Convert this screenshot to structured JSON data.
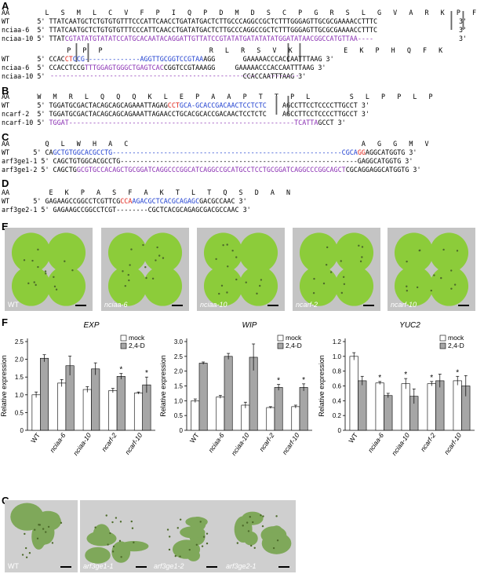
{
  "panels": {
    "A": "A",
    "B": "B",
    "C": "C",
    "D": "D",
    "E": "E",
    "F": "F",
    "G": "G"
  },
  "seqA": {
    "aa1": "AA         L   S   M   L   C   V   F   P   I   Q   P   D   M   D   S   C   P   G   R   S   L   G   V   A   R   K   P   F",
    "wt1": "WT       5' TTATCAATGCTCTGTGTGTTTCCCATTCAACCTGATATGACTCTTGCCCAGGCCGCTCTTTGGGAGTTGCGCGAAAACCTTTC",
    "n6_1": "nciaa-6  5' TTATCAATGCTCTGTGTGTTTCCCATTCAACCTGATATGACTCTTGCCCAGGCCGCTCTTTGGGAGTTGCGCGAAAACCTTTC",
    "n10_1a": "nciaa-10 5' TTAT",
    "n10_1b": "CGTATATGTATATCCATGCACAATACAGGATTGTTATCCGTATATGATATATATGGATATAACGGCCATGTTAA",
    "n10_1c": "----",
    "aa2": "     P   P   P                           R   L   R   S   V   K             E   K   P   H   Q   F   K",
    "wt2a": "WT       5' CCAC",
    "wt2b": "CT",
    "wt2c": "CCG",
    "wt2d": "--------------",
    "wt2e": "AGGTTGCGGTCCGTAA",
    "wt2f": "AGG",
    "wt2g": "       GAAAAACCCACCAATTTAAG 3'",
    "n6_2a": "nciaa-6  5' CCACCTCCG",
    "n6_2b": "TTTGGAGTGGGCTGAGTCAC",
    "n6_2c": "CGGTCCGTAAAGG     GAAAAACCCACCAATTTAAG 3'",
    "n10_2": "nciaa-10 5'                                                  CCACCAATTTAAG 3'",
    "n10_2d": "----------------------------------------------------   --------"
  },
  "seqB": {
    "aa": "AA       W   M   R   L   Q   Q   Q   K   L   E   P   A   A   P   T   T   P   L          S   L   P   P   L   P",
    "wt_a": "WT       5' TGGATGCGACTACAGCAGCAGAAATTAGAG",
    "wt_b": "CCT",
    "wt_c": "GCA-GCACCGACAACTCCTCTC",
    "wt_d": "    AGCCTTCCTCCCCTTGCCT 3'",
    "n2": "ncarf-2  5' TGGATGCGACTACAGCAGCAGAAATTAGAACCTGCACGCACCGACAACTCCTCTC    AGCCTTCCTCCCCTTGCCT 3'",
    "n10_a": "ncarf-10 5' ",
    "n10_b": "TGGAT",
    "n10_c": "---------------------------------------------------------",
    "n10_d": "TCATTA",
    "n10_e": "GCCT 3'"
  },
  "seqC": {
    "aa": "AA         Q   L   W   H   A   C                                                           A   G   G   M   V",
    "wt_a": "WT      5' CA",
    "wt_b": "GCTGTGGCACGCCTG",
    "wt_c": "----------------------------------------------------------",
    "wt_d": "CGCA",
    "wt_e": "GG",
    "wt_f": "AGGCATGGTG 3'",
    "m1_a": "arf3ge1-1 5' CAGCTGTGGCACGCCTG",
    "m1_b": "------------------------------------------------------------",
    "m1_c": "GAGGCATGGTG 3'",
    "m2_a": "arf3ge1-2 5' CAGCTG",
    "m2_b": "GCGTGCCACAGCTGCGGATCAGGCCCGGCATCAGGCCGCATGCCTCCTGCGGATCAGGCCCGGCAGCT",
    "m2_c": "CGCAGGAGGCATGGTG 3'"
  },
  "seqD": {
    "aa": "AA          E   K   P   A   S   F   A   K   T   L   T   Q   S   D   A   N",
    "wt_a": "WT      5' GAGAAGCCGGCCTCGTTCG",
    "wt_b": "CCA",
    "wt_c": "AGACGCTCACGCAGAGC",
    "wt_d": "GACGCCAAC 3'",
    "m_a": "arf3ge2-1 5' GAGAAGCCGGCCTCGT",
    "m_b": "--------",
    "m_c": "CGCTCACGCAGAGCGACGCCAAC 3'"
  },
  "photosE": [
    "WT",
    "nciaa-6",
    "nciaa-10",
    "ncarf-2",
    "ncarf-10"
  ],
  "photosG": [
    "WT",
    "arf3ge1-1",
    "arf3ge1-2",
    "arf3ge2-1"
  ],
  "legend": {
    "mock": "mock",
    "treat": "2,4-D"
  },
  "ylabel": "Relative expression",
  "chart_data": [
    {
      "type": "bar",
      "title": "EXP",
      "categories": [
        "WT",
        "nciaa-6",
        "nciaa-10",
        "ncarf-2",
        "ncarf-10"
      ],
      "series": [
        {
          "name": "mock",
          "values": [
            1.0,
            1.33,
            1.15,
            1.12,
            1.05
          ],
          "err": [
            0.08,
            0.1,
            0.08,
            0.06,
            0.03
          ]
        },
        {
          "name": "2,4-D",
          "values": [
            2.03,
            1.82,
            1.73,
            1.52,
            1.28
          ],
          "err": [
            0.1,
            0.27,
            0.17,
            0.08,
            0.22
          ]
        }
      ],
      "ylim": [
        0,
        2.5
      ],
      "yticks": [
        0,
        0.5,
        1.0,
        1.5,
        2.0,
        2.5
      ],
      "stars": [
        [
          3,
          1
        ],
        [
          4,
          1
        ]
      ]
    },
    {
      "type": "bar",
      "title": "WIP",
      "categories": [
        "WT",
        "nciaa-6",
        "nciaa-10",
        "ncarf-2",
        "ncarf-10"
      ],
      "series": [
        {
          "name": "mock",
          "values": [
            1.0,
            1.13,
            0.85,
            0.77,
            0.8
          ],
          "err": [
            0.06,
            0.05,
            0.1,
            0.03,
            0.05
          ]
        },
        {
          "name": "2,4-D",
          "values": [
            2.27,
            2.5,
            2.47,
            1.45,
            1.45
          ],
          "err": [
            0.04,
            0.1,
            0.45,
            0.1,
            0.12
          ]
        }
      ],
      "ylim": [
        0,
        3.0
      ],
      "yticks": [
        0,
        0.5,
        1.0,
        1.5,
        2.0,
        2.5,
        3.0
      ],
      "stars": [
        [
          3,
          1
        ],
        [
          4,
          1
        ]
      ]
    },
    {
      "type": "bar",
      "title": "YUC2",
      "categories": [
        "WT",
        "nciaa-6",
        "nciaa-10",
        "ncarf-2",
        "ncarf-10"
      ],
      "series": [
        {
          "name": "mock",
          "values": [
            1.0,
            0.64,
            0.63,
            0.63,
            0.67
          ],
          "err": [
            0.05,
            0.02,
            0.07,
            0.03,
            0.06
          ]
        },
        {
          "name": "2,4-D",
          "values": [
            0.67,
            0.47,
            0.46,
            0.67,
            0.6
          ],
          "err": [
            0.06,
            0.03,
            0.1,
            0.09,
            0.14
          ]
        }
      ],
      "ylim": [
        0,
        1.2
      ],
      "yticks": [
        0,
        0.2,
        0.4,
        0.6,
        0.8,
        1.0,
        1.2
      ],
      "stars": [
        [
          1,
          0
        ],
        [
          2,
          0
        ],
        [
          3,
          0
        ],
        [
          4,
          0
        ]
      ]
    }
  ]
}
